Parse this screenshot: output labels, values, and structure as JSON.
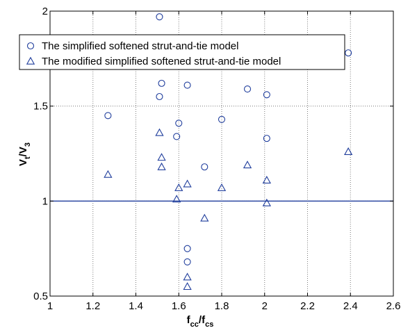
{
  "chart_data": {
    "type": "scatter",
    "xlabel_parts": [
      "f",
      "cc",
      "/f",
      "cs"
    ],
    "ylabel_parts": [
      "V",
      "t",
      "/V",
      "3"
    ],
    "xlim": [
      1,
      2.6
    ],
    "ylim": [
      0.5,
      2
    ],
    "x_ticks": [
      "1",
      "1.2",
      "1.4",
      "1.6",
      "1.8",
      "2",
      "2.2",
      "2.4",
      "2.6"
    ],
    "y_ticks": [
      "0.5",
      "1",
      "1.5",
      "2"
    ],
    "grid": true,
    "legend_position": "top-left",
    "reference_line": {
      "y": 1,
      "color": "#1f3d9c"
    },
    "marker_color": "#1f3d9c",
    "series": [
      {
        "name": "The simplified softened strut-and-tie model",
        "marker": "circle",
        "points": [
          {
            "x": 1.27,
            "y": 1.45
          },
          {
            "x": 1.51,
            "y": 1.97
          },
          {
            "x": 1.52,
            "y": 1.62
          },
          {
            "x": 1.51,
            "y": 1.55
          },
          {
            "x": 1.64,
            "y": 1.61
          },
          {
            "x": 1.6,
            "y": 1.41
          },
          {
            "x": 1.59,
            "y": 1.34
          },
          {
            "x": 1.72,
            "y": 1.18
          },
          {
            "x": 1.8,
            "y": 1.43
          },
          {
            "x": 1.92,
            "y": 1.59
          },
          {
            "x": 2.01,
            "y": 1.56
          },
          {
            "x": 2.01,
            "y": 1.33
          },
          {
            "x": 2.39,
            "y": 1.78
          },
          {
            "x": 1.64,
            "y": 0.75
          },
          {
            "x": 1.64,
            "y": 0.68
          }
        ]
      },
      {
        "name": "The modified simplified softened strut-and-tie model",
        "marker": "triangle",
        "points": [
          {
            "x": 1.27,
            "y": 1.14
          },
          {
            "x": 1.51,
            "y": 1.36
          },
          {
            "x": 1.52,
            "y": 1.23
          },
          {
            "x": 1.52,
            "y": 1.18
          },
          {
            "x": 1.6,
            "y": 1.07
          },
          {
            "x": 1.59,
            "y": 1.01
          },
          {
            "x": 1.64,
            "y": 1.09
          },
          {
            "x": 1.72,
            "y": 0.91
          },
          {
            "x": 1.8,
            "y": 1.07
          },
          {
            "x": 1.92,
            "y": 1.19
          },
          {
            "x": 2.01,
            "y": 1.11
          },
          {
            "x": 2.01,
            "y": 0.99
          },
          {
            "x": 2.39,
            "y": 1.26
          },
          {
            "x": 1.64,
            "y": 0.6
          },
          {
            "x": 1.64,
            "y": 0.55
          }
        ]
      }
    ]
  }
}
